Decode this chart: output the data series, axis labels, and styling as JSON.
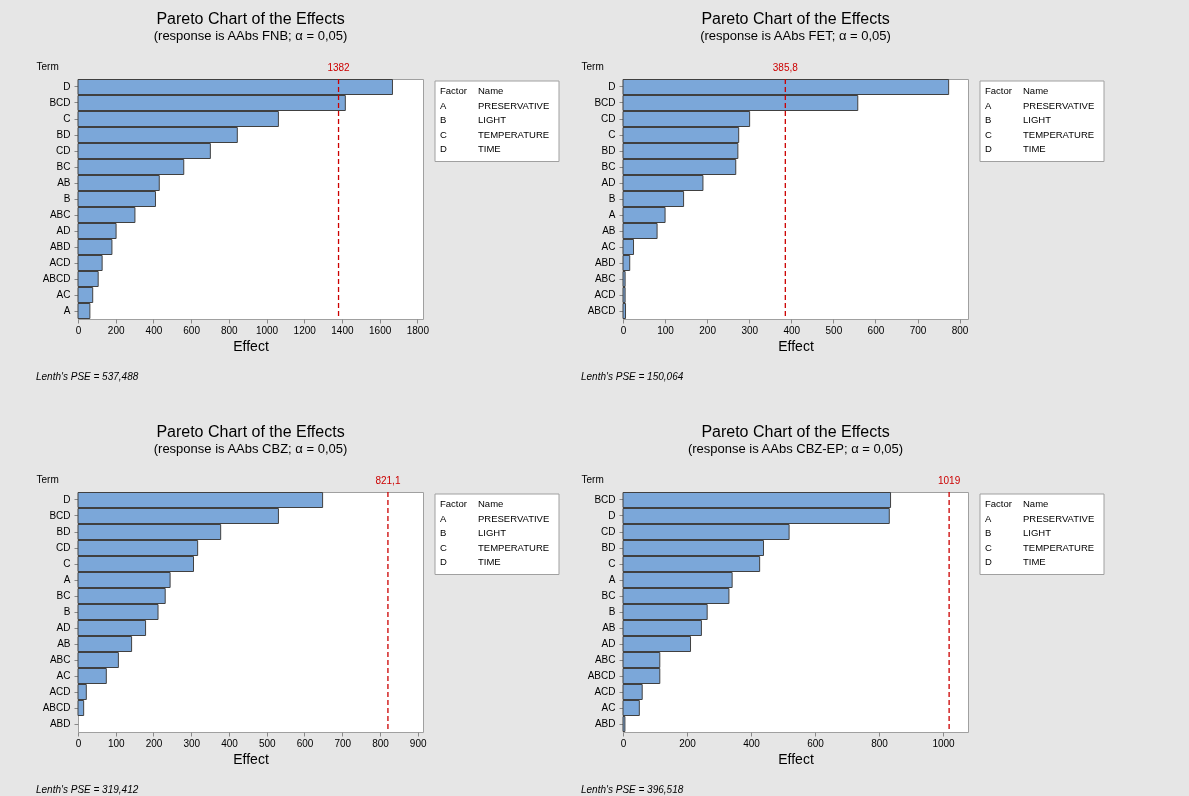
{
  "chart_data": [
    {
      "type": "bar",
      "orientation": "horizontal",
      "title": "Pareto Chart of the Effects",
      "subtitle": "(response is AAbs FNB; α = 0,05)",
      "xlabel": "Effect",
      "ylabel": "Term",
      "color": "#7ba7d9",
      "categories": [
        "D",
        "BCD",
        "C",
        "BD",
        "CD",
        "BC",
        "AB",
        "B",
        "ABC",
        "AD",
        "ABD",
        "ACD",
        "ABCD",
        "AC",
        "A"
      ],
      "values": [
        1668,
        1418,
        1063,
        845,
        702,
        561,
        431,
        411,
        302,
        202,
        180,
        128,
        107,
        78,
        63
      ],
      "xlim": [
        0,
        1830
      ],
      "xticks": [
        0,
        200,
        400,
        600,
        800,
        1000,
        1200,
        1400,
        1600,
        1800
      ],
      "ref_lines": [
        {
          "axis": "x",
          "value": 1382,
          "label": "1382",
          "color": "#cc0000",
          "line_style": "dashed"
        }
      ],
      "annotations": [
        "Lenth's PSE = 537,488",
        "Factor",
        "Name",
        "A",
        "PRESERVATIVE",
        "B",
        "LIGHT",
        "C",
        "TEMPERATURE",
        "D",
        "TIME"
      ]
    },
    {
      "type": "bar",
      "orientation": "horizontal",
      "title": "Pareto Chart of the Effects",
      "subtitle": "(response is AAbs FET; α = 0,05)",
      "xlabel": "Effect",
      "ylabel": "Term",
      "color": "#7ba7d9",
      "categories": [
        "D",
        "BCD",
        "CD",
        "C",
        "BD",
        "BC",
        "AD",
        "B",
        "A",
        "AB",
        "AC",
        "ABD",
        "ABC",
        "ACD",
        "ABCD"
      ],
      "values": [
        774,
        558,
        301,
        275,
        273,
        268,
        190,
        144,
        100,
        81,
        25,
        16,
        5,
        5,
        6
      ],
      "xlim": [
        0,
        820
      ],
      "xticks": [
        0,
        100,
        200,
        300,
        400,
        500,
        600,
        700,
        800
      ],
      "ref_lines": [
        {
          "axis": "x",
          "value": 385.8,
          "label": "385,8",
          "color": "#cc0000",
          "line_style": "dashed"
        }
      ],
      "annotations": [
        "Lenth's PSE = 150,064",
        "Factor",
        "Name",
        "A",
        "PRESERVATIVE",
        "B",
        "LIGHT",
        "C",
        "TEMPERATURE",
        "D",
        "TIME"
      ]
    },
    {
      "type": "bar",
      "orientation": "horizontal",
      "title": "Pareto Chart of the Effects",
      "subtitle": "(response is AAbs CBZ; α = 0,05)",
      "xlabel": "Effect",
      "ylabel": "Term",
      "color": "#7ba7d9",
      "categories": [
        "D",
        "BCD",
        "BD",
        "CD",
        "C",
        "A",
        "BC",
        "B",
        "AD",
        "AB",
        "ABC",
        "AC",
        "ACD",
        "ABCD",
        "ABD"
      ],
      "values": [
        648,
        531,
        378,
        317,
        306,
        244,
        231,
        212,
        179,
        142,
        107,
        75,
        22,
        15,
        null
      ],
      "xlim": [
        0,
        914
      ],
      "xticks": [
        0,
        100,
        200,
        300,
        400,
        500,
        600,
        700,
        800,
        900
      ],
      "ref_lines": [
        {
          "axis": "x",
          "value": 821.1,
          "label": "821,1",
          "color": "#cc0000",
          "line_style": "dashed"
        }
      ],
      "annotations": [
        "Lenth's PSE = 319,412",
        "Factor",
        "Name",
        "A",
        "PRESERVATIVE",
        "B",
        "LIGHT",
        "C",
        "TEMPERATURE",
        "D",
        "TIME"
      ]
    },
    {
      "type": "bar",
      "orientation": "horizontal",
      "title": "Pareto Chart of the Effects",
      "subtitle": "(response is AAbs CBZ-EP; α = 0,05)",
      "xlabel": "Effect",
      "ylabel": "Term",
      "color": "#7ba7d9",
      "categories": [
        "BCD",
        "D",
        "CD",
        "BD",
        "C",
        "A",
        "BC",
        "B",
        "AB",
        "AD",
        "ABC",
        "ABCD",
        "ACD",
        "AC",
        "ABD"
      ],
      "values": [
        836,
        832,
        519,
        439,
        427,
        341,
        331,
        263,
        245,
        211,
        115,
        115,
        60,
        51,
        6
      ],
      "xlim": [
        0,
        1078
      ],
      "xticks": [
        0,
        200,
        400,
        600,
        800,
        1000
      ],
      "ref_lines": [
        {
          "axis": "x",
          "value": 1019,
          "label": "1019",
          "color": "#cc0000",
          "line_style": "dashed"
        }
      ],
      "annotations": [
        "Lenth's PSE = 396,518",
        "Factor",
        "Name",
        "A",
        "PRESERVATIVE",
        "B",
        "LIGHT",
        "C",
        "TEMPERATURE",
        "D",
        "TIME"
      ]
    }
  ]
}
